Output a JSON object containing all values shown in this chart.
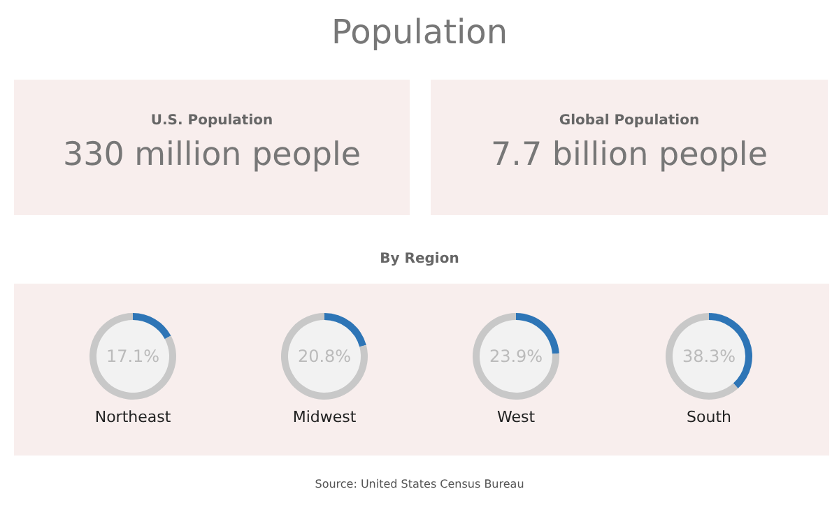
{
  "chart_data": [
    {
      "type": "other",
      "title": "Population"
    },
    {
      "type": "other",
      "title": "U.S. Population",
      "annotations": [
        "330 million people"
      ]
    },
    {
      "type": "other",
      "title": "Global Population",
      "annotations": [
        "7.7 billion people"
      ]
    },
    {
      "type": "other",
      "title": "By Region"
    },
    {
      "type": "donut",
      "title": "Northeast",
      "values": [
        17.1,
        82.9
      ],
      "colors": [
        "#2e75b6",
        "#c8c8c8"
      ],
      "value_labels": [
        "17.1%",
        null
      ]
    },
    {
      "type": "donut",
      "title": "Midwest",
      "values": [
        20.8,
        79.2
      ],
      "colors": [
        "#2e75b6",
        "#c8c8c8"
      ],
      "value_labels": [
        "20.8%",
        null
      ]
    },
    {
      "type": "donut",
      "title": "West",
      "values": [
        23.9,
        76.1
      ],
      "colors": [
        "#2e75b6",
        "#c8c8c8"
      ],
      "value_labels": [
        "23.9%",
        null
      ]
    },
    {
      "type": "donut",
      "title": "South",
      "values": [
        38.3,
        61.7
      ],
      "colors": [
        "#2e75b6",
        "#c8c8c8"
      ],
      "value_labels": [
        "38.3%",
        null
      ]
    },
    {
      "type": "other",
      "annotations": [
        "Source: United States Census Bureau"
      ]
    }
  ]
}
